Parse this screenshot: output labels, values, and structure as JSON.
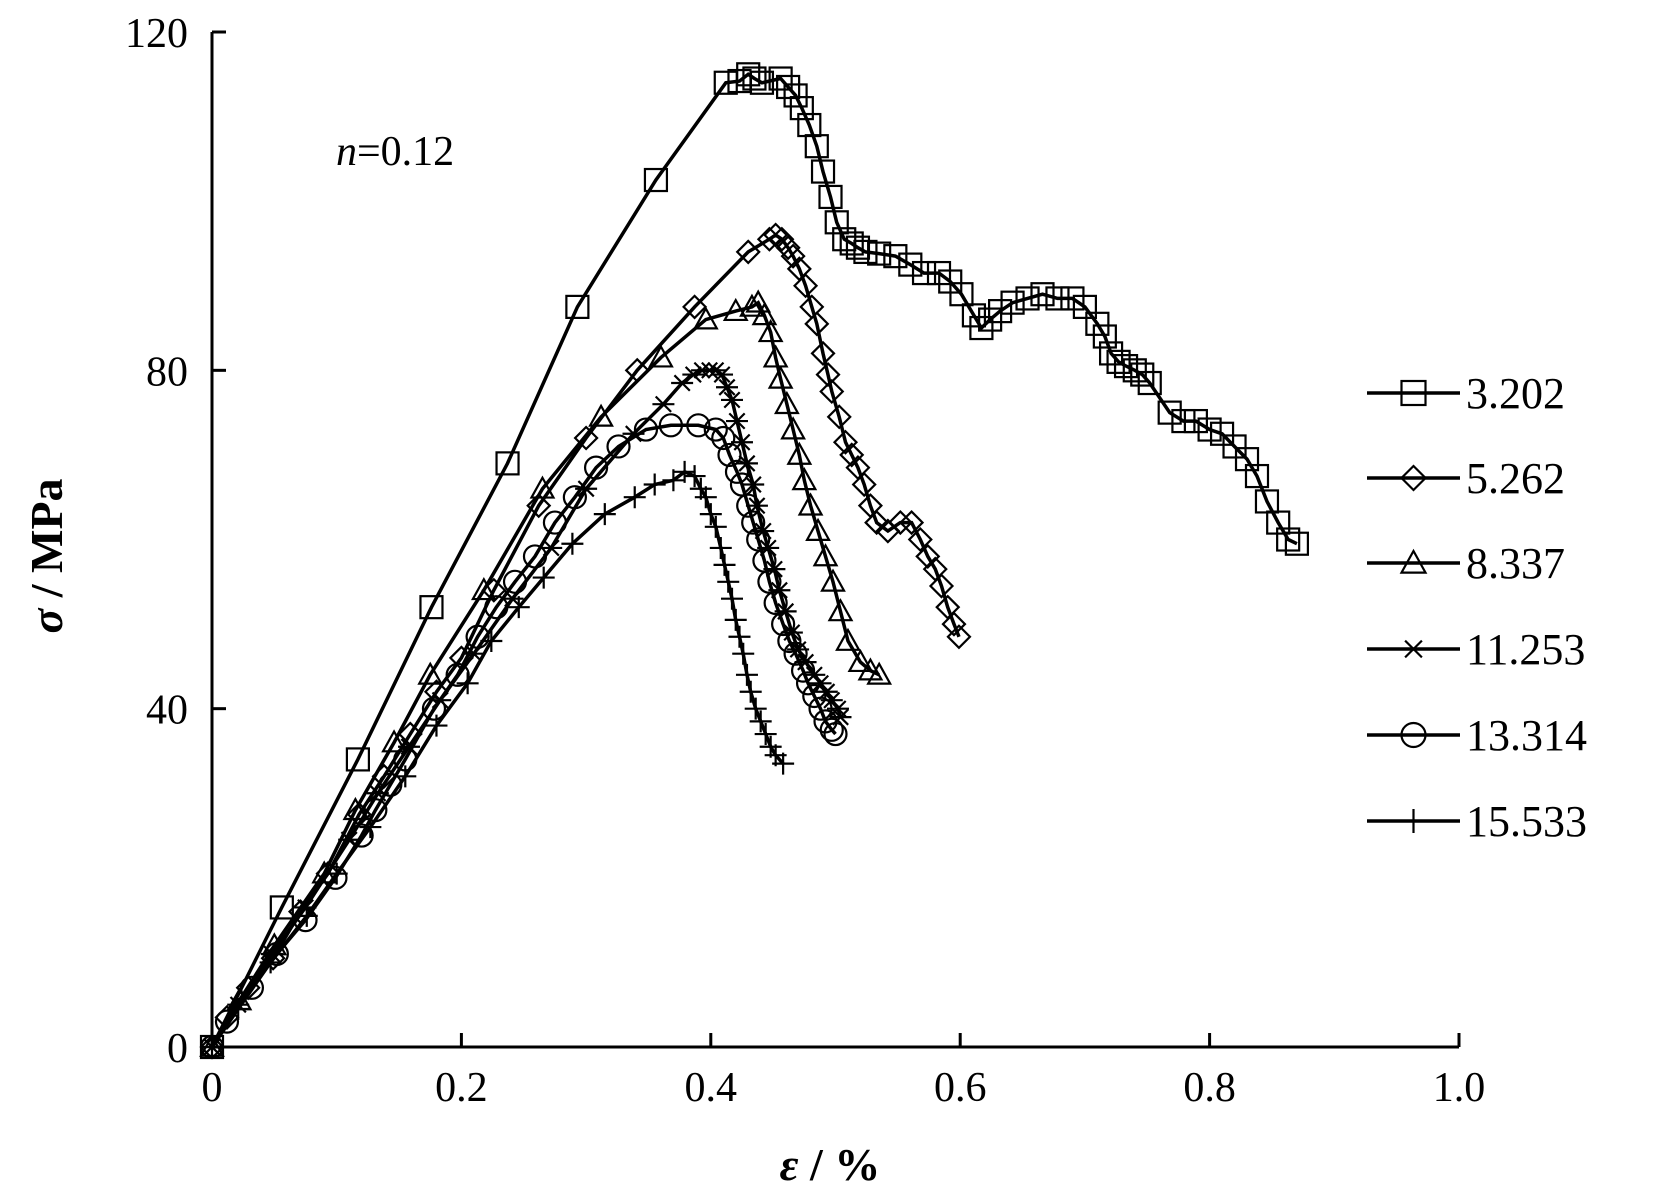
{
  "chart_data": {
    "type": "line",
    "annotation": {
      "symbol": "n",
      "text": "=0.12"
    },
    "xlabel": {
      "symbol": "ε",
      "unit": " / %"
    },
    "ylabel": {
      "symbol": "σ",
      "unit": " / MPa"
    },
    "xlim": [
      0,
      1.0
    ],
    "ylim": [
      0,
      120
    ],
    "xticks": [
      "0",
      "0.2",
      "0.4",
      "0.6",
      "0.8",
      "1.0"
    ],
    "yticks": [
      "0",
      "40",
      "80",
      "120"
    ],
    "grid": false,
    "legend_position": "right",
    "series": [
      {
        "name": "3.202",
        "marker": "square",
        "points": [
          [
            0,
            0
          ],
          [
            0.056,
            16.5
          ],
          [
            0.117,
            34
          ],
          [
            0.176,
            52
          ],
          [
            0.237,
            69
          ],
          [
            0.293,
            87.5
          ],
          [
            0.356,
            102.5
          ],
          [
            0.412,
            114
          ],
          [
            0.423,
            114.2
          ],
          [
            0.43,
            115
          ],
          [
            0.435,
            114.5
          ],
          [
            0.441,
            114
          ],
          [
            0.456,
            114.5
          ],
          [
            0.462,
            113.5
          ],
          [
            0.468,
            112.5
          ],
          [
            0.473,
            111
          ],
          [
            0.479,
            109
          ],
          [
            0.485,
            106.5
          ],
          [
            0.49,
            103.5
          ],
          [
            0.496,
            100.5
          ],
          [
            0.501,
            97.5
          ],
          [
            0.507,
            95.5
          ],
          [
            0.513,
            95
          ],
          [
            0.518,
            94.5
          ],
          [
            0.524,
            94
          ],
          [
            0.535,
            93.8
          ],
          [
            0.548,
            93.5
          ],
          [
            0.56,
            92.5
          ],
          [
            0.571,
            91.5
          ],
          [
            0.583,
            91.5
          ],
          [
            0.592,
            90.5
          ],
          [
            0.601,
            89
          ],
          [
            0.611,
            86.5
          ],
          [
            0.617,
            85
          ],
          [
            0.624,
            86
          ],
          [
            0.632,
            87
          ],
          [
            0.642,
            88
          ],
          [
            0.654,
            88.5
          ],
          [
            0.666,
            89
          ],
          [
            0.678,
            88.5
          ],
          [
            0.69,
            88.5
          ],
          [
            0.7,
            87.5
          ],
          [
            0.71,
            85.5
          ],
          [
            0.716,
            84
          ],
          [
            0.721,
            82
          ],
          [
            0.727,
            81
          ],
          [
            0.733,
            80.5
          ],
          [
            0.74,
            80
          ],
          [
            0.746,
            79.5
          ],
          [
            0.752,
            78.5
          ],
          [
            0.768,
            75
          ],
          [
            0.779,
            74
          ],
          [
            0.789,
            74
          ],
          [
            0.8,
            73
          ],
          [
            0.81,
            72.5
          ],
          [
            0.82,
            71
          ],
          [
            0.83,
            69.5
          ],
          [
            0.838,
            67.5
          ],
          [
            0.846,
            64.5
          ],
          [
            0.855,
            62
          ],
          [
            0.863,
            60
          ],
          [
            0.87,
            59.5
          ]
        ]
      },
      {
        "name": "5.262",
        "marker": "diamond",
        "points": [
          [
            0,
            0
          ],
          [
            0.012,
            3.5
          ],
          [
            0.029,
            7
          ],
          [
            0.049,
            10.5
          ],
          [
            0.071,
            16
          ],
          [
            0.093,
            20.5
          ],
          [
            0.118,
            27.5
          ],
          [
            0.138,
            32
          ],
          [
            0.159,
            37
          ],
          [
            0.18,
            42
          ],
          [
            0.2,
            46
          ],
          [
            0.226,
            54
          ],
          [
            0.262,
            64
          ],
          [
            0.3,
            72
          ],
          [
            0.341,
            80
          ],
          [
            0.387,
            87.5
          ],
          [
            0.43,
            94
          ],
          [
            0.447,
            95.5
          ],
          [
            0.452,
            96
          ],
          [
            0.457,
            95.5
          ],
          [
            0.462,
            94.5
          ],
          [
            0.466,
            93.5
          ],
          [
            0.471,
            92
          ],
          [
            0.476,
            90
          ],
          [
            0.481,
            87.5
          ],
          [
            0.485,
            85.5
          ],
          [
            0.49,
            82
          ],
          [
            0.494,
            79.5
          ],
          [
            0.497,
            77.5
          ],
          [
            0.503,
            74.5
          ],
          [
            0.508,
            71.5
          ],
          [
            0.513,
            70
          ],
          [
            0.518,
            68.5
          ],
          [
            0.523,
            66.5
          ],
          [
            0.528,
            64
          ],
          [
            0.533,
            62
          ],
          [
            0.542,
            61
          ],
          [
            0.552,
            62
          ],
          [
            0.561,
            62
          ],
          [
            0.568,
            60
          ],
          [
            0.574,
            58
          ],
          [
            0.58,
            56.5
          ],
          [
            0.585,
            54.5
          ],
          [
            0.59,
            52
          ],
          [
            0.595,
            50
          ],
          [
            0.599,
            48.5
          ]
        ]
      },
      {
        "name": "8.337",
        "marker": "triangle",
        "points": [
          [
            0,
            0
          ],
          [
            0.022,
            5.5
          ],
          [
            0.05,
            12
          ],
          [
            0.09,
            20.5
          ],
          [
            0.115,
            28
          ],
          [
            0.146,
            36
          ],
          [
            0.175,
            44
          ],
          [
            0.218,
            54
          ],
          [
            0.265,
            66
          ],
          [
            0.312,
            74.5
          ],
          [
            0.36,
            81.5
          ],
          [
            0.396,
            86
          ],
          [
            0.42,
            87
          ],
          [
            0.433,
            87.5
          ],
          [
            0.438,
            88
          ],
          [
            0.443,
            86.5
          ],
          [
            0.448,
            84.5
          ],
          [
            0.452,
            81.5
          ],
          [
            0.456,
            79
          ],
          [
            0.461,
            76
          ],
          [
            0.466,
            73
          ],
          [
            0.471,
            70
          ],
          [
            0.475,
            67
          ],
          [
            0.48,
            64
          ],
          [
            0.486,
            61
          ],
          [
            0.492,
            58
          ],
          [
            0.498,
            55
          ],
          [
            0.504,
            51.5
          ],
          [
            0.51,
            48
          ],
          [
            0.52,
            45.5
          ],
          [
            0.528,
            44.5
          ],
          [
            0.535,
            44
          ]
        ]
      },
      {
        "name": "11.253",
        "marker": "star",
        "points": [
          [
            0,
            0
          ],
          [
            0.021,
            5
          ],
          [
            0.048,
            11
          ],
          [
            0.075,
            16.5
          ],
          [
            0.11,
            24.5
          ],
          [
            0.133,
            30
          ],
          [
            0.158,
            35.5
          ],
          [
            0.183,
            41
          ],
          [
            0.21,
            46.5
          ],
          [
            0.241,
            53
          ],
          [
            0.272,
            59
          ],
          [
            0.3,
            66
          ],
          [
            0.338,
            72.5
          ],
          [
            0.362,
            76
          ],
          [
            0.377,
            78.5
          ],
          [
            0.386,
            79.5
          ],
          [
            0.393,
            80
          ],
          [
            0.399,
            80
          ],
          [
            0.404,
            80
          ],
          [
            0.409,
            79.5
          ],
          [
            0.413,
            78
          ],
          [
            0.417,
            76.5
          ],
          [
            0.421,
            74
          ],
          [
            0.425,
            71.5
          ],
          [
            0.429,
            69
          ],
          [
            0.434,
            66.5
          ],
          [
            0.437,
            64
          ],
          [
            0.442,
            61
          ],
          [
            0.446,
            59
          ],
          [
            0.451,
            56.5
          ],
          [
            0.455,
            54
          ],
          [
            0.46,
            51.5
          ],
          [
            0.465,
            49
          ],
          [
            0.47,
            47
          ],
          [
            0.476,
            45.5
          ],
          [
            0.483,
            44
          ],
          [
            0.488,
            43
          ],
          [
            0.493,
            42
          ],
          [
            0.497,
            41
          ],
          [
            0.502,
            40
          ],
          [
            0.504,
            39
          ]
        ]
      },
      {
        "name": "13.314",
        "marker": "circle",
        "points": [
          [
            0,
            0
          ],
          [
            0.012,
            3
          ],
          [
            0.032,
            7
          ],
          [
            0.052,
            11
          ],
          [
            0.075,
            15
          ],
          [
            0.099,
            20
          ],
          [
            0.12,
            25
          ],
          [
            0.131,
            28
          ],
          [
            0.143,
            31
          ],
          [
            0.155,
            34
          ],
          [
            0.178,
            40
          ],
          [
            0.197,
            44
          ],
          [
            0.213,
            48.5
          ],
          [
            0.228,
            52
          ],
          [
            0.243,
            55
          ],
          [
            0.259,
            58
          ],
          [
            0.275,
            62
          ],
          [
            0.291,
            65
          ],
          [
            0.308,
            68.5
          ],
          [
            0.326,
            71
          ],
          [
            0.348,
            73
          ],
          [
            0.368,
            73.5
          ],
          [
            0.39,
            73.5
          ],
          [
            0.404,
            73
          ],
          [
            0.41,
            72
          ],
          [
            0.415,
            70
          ],
          [
            0.421,
            68
          ],
          [
            0.425,
            66.5
          ],
          [
            0.43,
            64
          ],
          [
            0.434,
            62
          ],
          [
            0.438,
            60
          ],
          [
            0.443,
            57.5
          ],
          [
            0.447,
            55
          ],
          [
            0.452,
            52.5
          ],
          [
            0.458,
            50
          ],
          [
            0.463,
            48
          ],
          [
            0.468,
            46.5
          ],
          [
            0.474,
            44.5
          ],
          [
            0.478,
            43
          ],
          [
            0.483,
            41.5
          ],
          [
            0.488,
            40
          ],
          [
            0.492,
            38.5
          ],
          [
            0.497,
            37.5
          ],
          [
            0.5,
            37
          ]
        ]
      },
      {
        "name": "15.533",
        "marker": "plus",
        "points": [
          [
            0,
            0
          ],
          [
            0.021,
            4.5
          ],
          [
            0.047,
            10
          ],
          [
            0.076,
            15.5
          ],
          [
            0.1,
            20.5
          ],
          [
            0.127,
            26
          ],
          [
            0.155,
            32
          ],
          [
            0.18,
            38
          ],
          [
            0.205,
            43
          ],
          [
            0.224,
            48
          ],
          [
            0.246,
            52
          ],
          [
            0.266,
            55.5
          ],
          [
            0.289,
            59.5
          ],
          [
            0.315,
            63
          ],
          [
            0.339,
            65
          ],
          [
            0.355,
            66.5
          ],
          [
            0.37,
            67
          ],
          [
            0.379,
            68
          ],
          [
            0.387,
            67.5
          ],
          [
            0.392,
            66
          ],
          [
            0.396,
            65
          ],
          [
            0.4,
            63
          ],
          [
            0.404,
            61.5
          ],
          [
            0.408,
            59
          ],
          [
            0.411,
            57
          ],
          [
            0.414,
            55
          ],
          [
            0.417,
            53
          ],
          [
            0.42,
            50.5
          ],
          [
            0.423,
            48.5
          ],
          [
            0.426,
            46.5
          ],
          [
            0.429,
            44
          ],
          [
            0.432,
            42
          ],
          [
            0.436,
            40
          ],
          [
            0.44,
            38.5
          ],
          [
            0.444,
            37
          ],
          [
            0.448,
            35.5
          ],
          [
            0.452,
            34.5
          ],
          [
            0.458,
            33.5
          ]
        ]
      }
    ]
  }
}
